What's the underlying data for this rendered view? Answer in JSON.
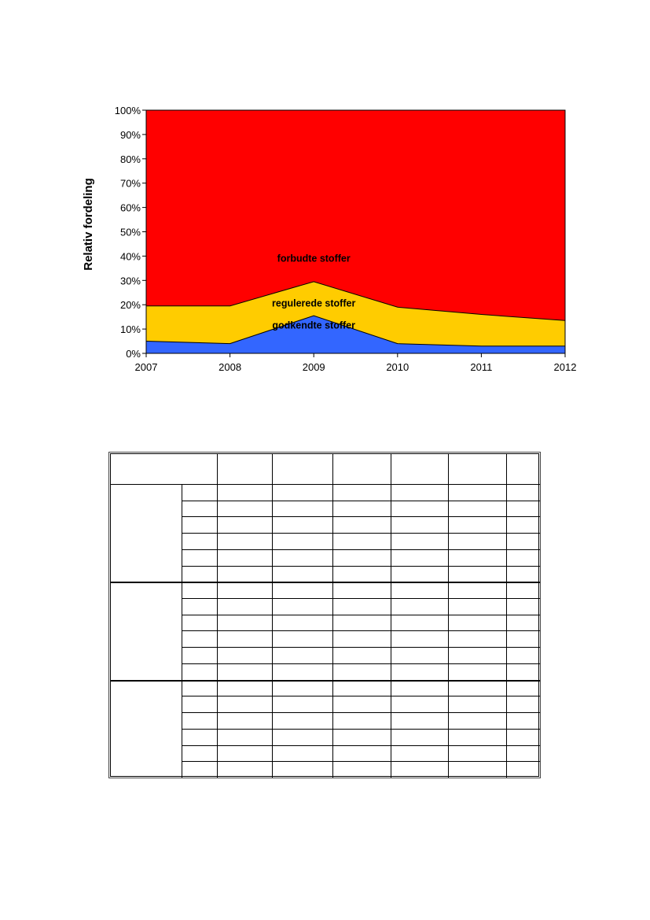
{
  "chart_data": {
    "type": "area",
    "stacked": true,
    "percent": true,
    "ylabel": "Relativ fordeling",
    "xlabel": "",
    "x": [
      "2007",
      "2008",
      "2009",
      "2010",
      "2011",
      "2012"
    ],
    "ylim": [
      0,
      100
    ],
    "yticks": [
      "0%",
      "10%",
      "20%",
      "30%",
      "40%",
      "50%",
      "60%",
      "70%",
      "80%",
      "90%",
      "100%"
    ],
    "grid": false,
    "series": [
      {
        "name": "godkendte stoffer",
        "values": [
          5,
          4,
          15.5,
          4,
          3,
          3
        ],
        "color": "#3366ff"
      },
      {
        "name": "regulerede stoffer",
        "values": [
          14.5,
          15.5,
          14,
          15,
          13,
          10.5
        ],
        "color": "#ffcc00"
      },
      {
        "name": "forbudte stoffer",
        "values": [
          80.5,
          80.5,
          70.5,
          81,
          84,
          86.5
        ],
        "color": "#ff0000"
      }
    ]
  },
  "table": {
    "groups": 3,
    "rows_per_group": 6,
    "value_columns": 6
  }
}
